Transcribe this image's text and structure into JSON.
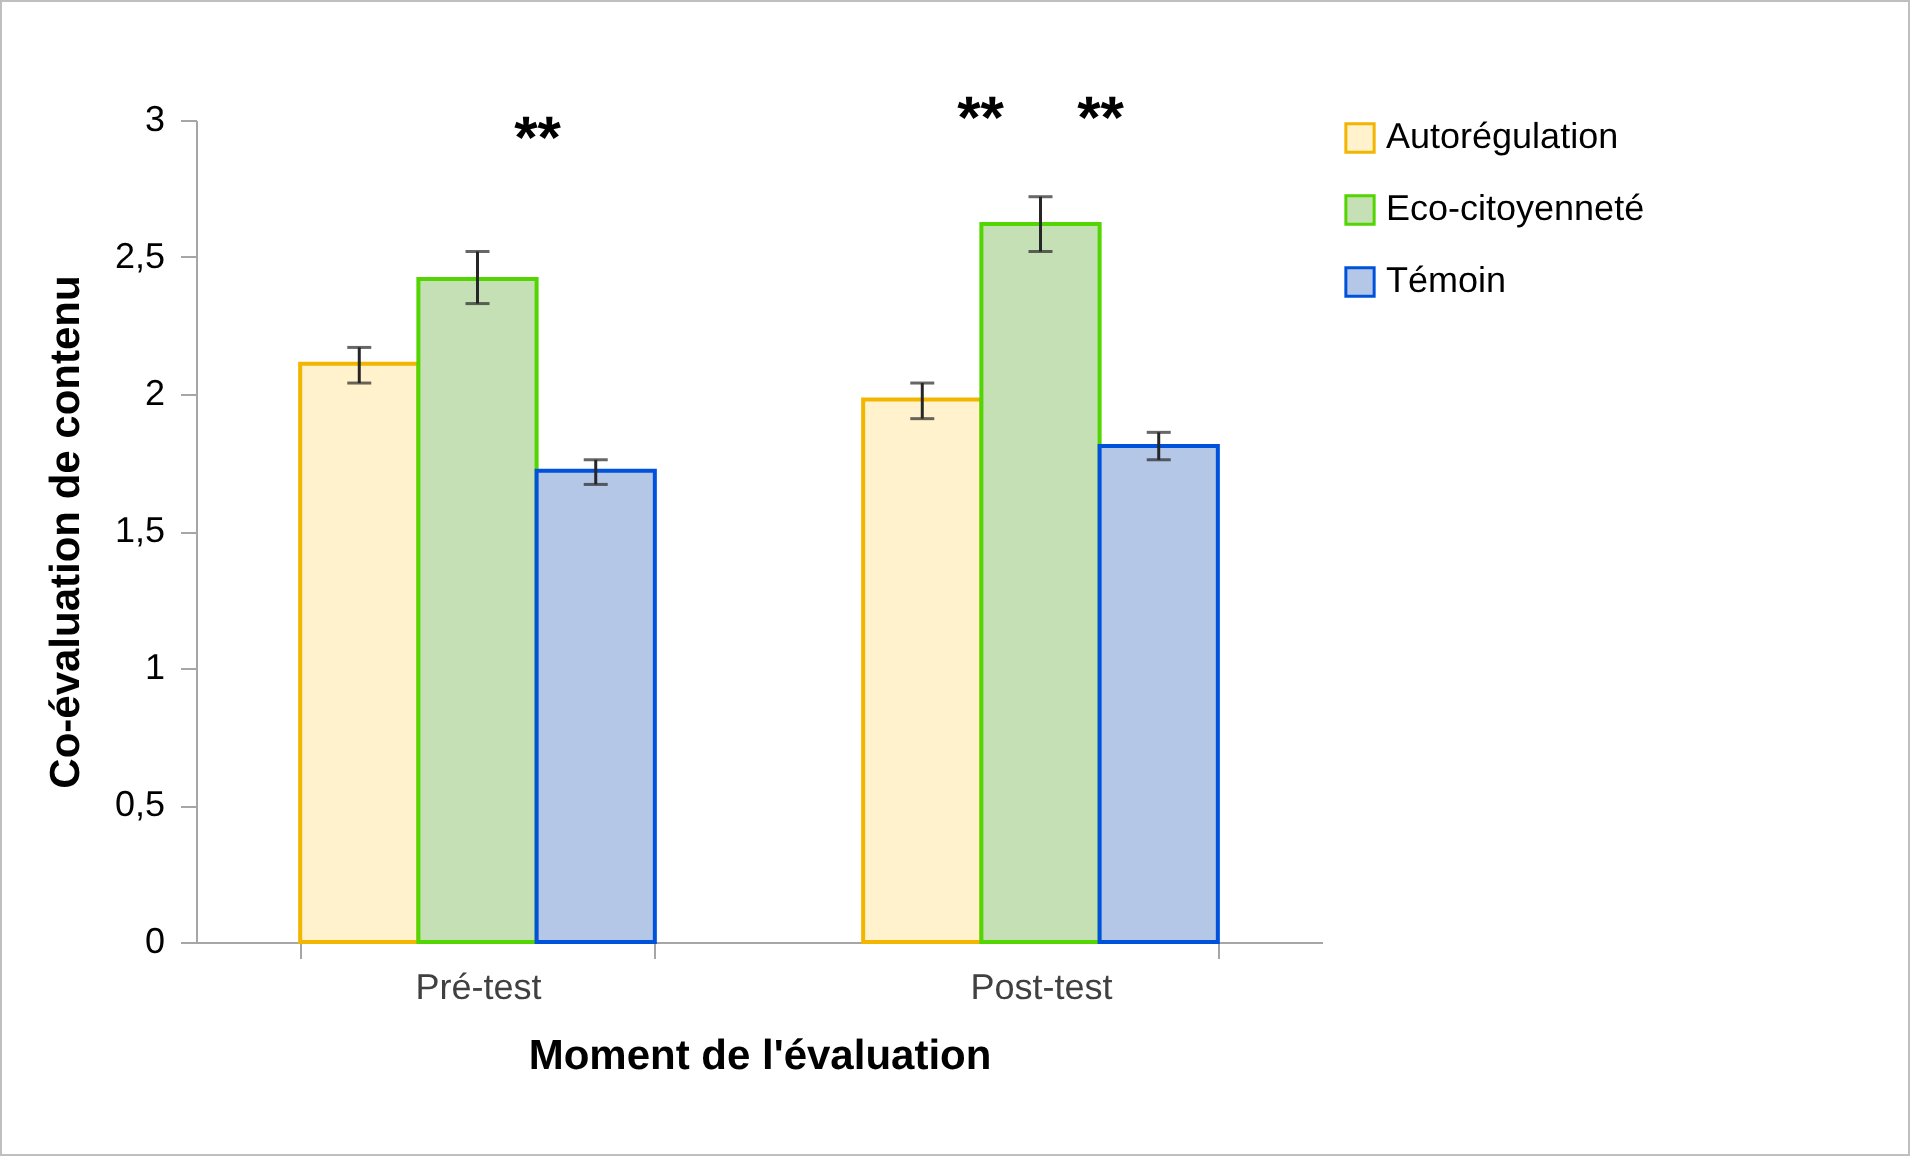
{
  "chart_data": {
    "type": "bar",
    "xlabel": "Moment de l'évaluation",
    "ylabel": "Co-évaluation de contenu",
    "categories": [
      "Pré-test",
      "Post-test"
    ],
    "series": [
      {
        "name": "Autorégulation",
        "color": "#fff2cc",
        "values": [
          2.11,
          1.98
        ],
        "errors": [
          [
            2.04,
            2.17
          ],
          [
            1.91,
            2.04
          ]
        ]
      },
      {
        "name": "Eco-citoyenneté",
        "color": "#c5e0b4",
        "values": [
          2.42,
          2.62
        ],
        "errors": [
          [
            2.33,
            2.52
          ],
          [
            2.52,
            2.72
          ]
        ]
      },
      {
        "name": "Témoin",
        "color": "#b4c7e7",
        "values": [
          1.72,
          1.81
        ],
        "errors": [
          [
            1.67,
            1.76
          ],
          [
            1.76,
            1.86
          ]
        ]
      }
    ],
    "ylim": [
      0,
      3
    ],
    "yticks": [
      0,
      {
        "value": 0.5,
        "label": "0,5"
      },
      1,
      {
        "value": 1.5,
        "label": "1,5"
      },
      2,
      {
        "value": 2.5,
        "label": "2,5"
      },
      3
    ],
    "annotations": [
      "**",
      "**",
      "**"
    ],
    "grid": false,
    "legend": "right"
  }
}
